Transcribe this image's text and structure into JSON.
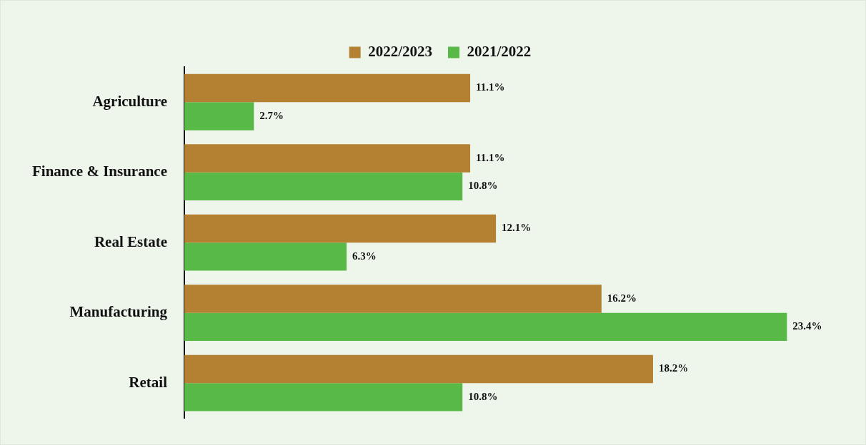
{
  "chart_data": {
    "type": "bar",
    "orientation": "horizontal",
    "legend": "top",
    "categories": [
      "Agriculture",
      "Finance & Insurance",
      "Real Estate",
      "Manufacturing",
      "Retail"
    ],
    "series": [
      {
        "name": "2022/2023",
        "color": "#b38131",
        "values": [
          11.1,
          11.1,
          12.1,
          16.2,
          18.2
        ],
        "value_labels": [
          "11.1%",
          "11.1%",
          "12.1%",
          "16.2%",
          "18.2%"
        ]
      },
      {
        "name": "2021/2022",
        "color": "#58b947",
        "values": [
          2.7,
          10.8,
          6.3,
          23.4,
          10.8
        ],
        "value_labels": [
          "2.7%",
          "10.8%",
          "6.3%",
          "23.4%",
          "10.8%"
        ]
      }
    ]
  }
}
